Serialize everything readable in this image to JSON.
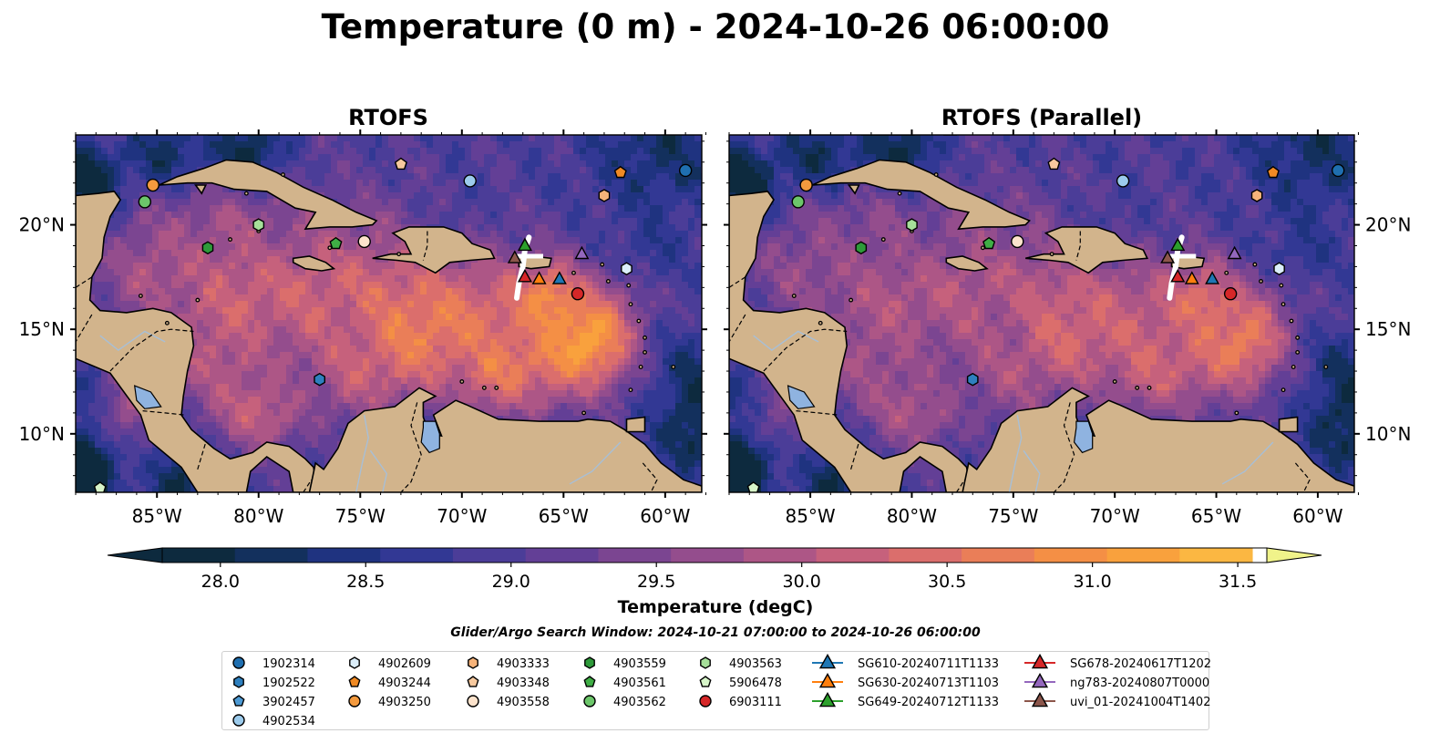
{
  "figure": {
    "title": "Temperature (0 m) - 2024-10-26 06:00:00",
    "search_window": "Glider/Argo Search Window: 2024-10-21 07:00:00 to 2024-10-26 06:00:00"
  },
  "map": {
    "lon_range": [
      -89,
      -58.2
    ],
    "lat_range": [
      7.2,
      24.3
    ],
    "lon_ticks": [
      {
        "value": -85,
        "label": "85°W"
      },
      {
        "value": -80,
        "label": "80°W"
      },
      {
        "value": -75,
        "label": "75°W"
      },
      {
        "value": -70,
        "label": "70°W"
      },
      {
        "value": -65,
        "label": "65°W"
      },
      {
        "value": -60,
        "label": "60°W"
      }
    ],
    "lat_ticks": [
      {
        "value": 10,
        "label": "10°N"
      },
      {
        "value": 15,
        "label": "15°N"
      },
      {
        "value": 20,
        "label": "20°N"
      }
    ],
    "panels": [
      {
        "title": "RTOFS",
        "lat_labels_side": "left"
      },
      {
        "title": "RTOFS (Parallel)",
        "lat_labels_side": "right"
      }
    ],
    "colors": {
      "land": "#d2b48c",
      "lake": "#8fb3e0",
      "river": "#a8bfd6",
      "outline": "#000000"
    }
  },
  "colorbar": {
    "label": "Temperature (degC)",
    "min": 27.8,
    "max": 31.6,
    "step": 0.25,
    "ticks": [
      "28.0",
      "28.5",
      "29.0",
      "29.5",
      "30.0",
      "30.5",
      "31.0",
      "31.5"
    ],
    "tick_values": [
      28.0,
      28.5,
      29.0,
      29.5,
      30.0,
      30.5,
      31.0,
      31.5
    ],
    "colors": [
      "#0d2a3e",
      "#13305d",
      "#1f3380",
      "#323894",
      "#4b3d98",
      "#633f96",
      "#7b4591",
      "#944d8d",
      "#ad5686",
      "#c6617c",
      "#db6e6c",
      "#ea7e58",
      "#f48f45",
      "#f9a13d",
      "#fbb742",
      "#f8cd4c",
      "#f4e258",
      "#f0f38a"
    ],
    "extend": "both"
  },
  "legend": {
    "items": [
      {
        "label": "1902314",
        "marker": "circle",
        "color": "#1f6fb0"
      },
      {
        "label": "1902522",
        "marker": "hexagon",
        "color": "#2e80bf"
      },
      {
        "label": "3902457",
        "marker": "pentagon",
        "color": "#4d9ad4"
      },
      {
        "label": "4902534",
        "marker": "circle",
        "color": "#9ccbec"
      },
      {
        "label": "4902609",
        "marker": "hexagon",
        "color": "#dbeefa"
      },
      {
        "label": "4903244",
        "marker": "pentagon",
        "color": "#f08a24"
      },
      {
        "label": "4903250",
        "marker": "circle",
        "color": "#f49a3e"
      },
      {
        "label": "4903333",
        "marker": "hexagon",
        "color": "#f6b37a"
      },
      {
        "label": "4903348",
        "marker": "pentagon",
        "color": "#f7c99e"
      },
      {
        "label": "4903558",
        "marker": "circle",
        "color": "#fde3cc"
      },
      {
        "label": "4903559",
        "marker": "hexagon",
        "color": "#2e9a3a"
      },
      {
        "label": "4903561",
        "marker": "pentagon",
        "color": "#3fae45"
      },
      {
        "label": "4903562",
        "marker": "circle",
        "color": "#6cc66a"
      },
      {
        "label": "4903563",
        "marker": "hexagon",
        "color": "#a6df9a"
      },
      {
        "label": "5906478",
        "marker": "pentagon",
        "color": "#d7f5c9"
      },
      {
        "label": "6903111",
        "marker": "circle",
        "color": "#d62728"
      },
      {
        "label": "SG610-20240711T1133",
        "marker": "triangle",
        "color": "#1f77b4"
      },
      {
        "label": "SG630-20240713T1103",
        "marker": "triangle",
        "color": "#ff7f0e"
      },
      {
        "label": "SG649-20240712T1133",
        "marker": "triangle",
        "color": "#2ca02c"
      },
      {
        "label": "SG678-20240617T1202",
        "marker": "triangle",
        "color": "#d62728"
      },
      {
        "label": "ng783-20240807T0000",
        "marker": "triangle",
        "color": "#9467bd"
      },
      {
        "label": "uvi_01-20241004T1402",
        "marker": "triangle",
        "color": "#8c564b"
      }
    ]
  },
  "observations": [
    {
      "id": "1902314",
      "lon": -59.0,
      "lat": 22.6
    },
    {
      "id": "1902522",
      "lon": -77.0,
      "lat": 12.6
    },
    {
      "id": "4902534",
      "lon": -69.6,
      "lat": 22.1
    },
    {
      "id": "4902609",
      "lon": -61.9,
      "lat": 17.9
    },
    {
      "id": "4903244",
      "lon": -62.2,
      "lat": 22.5
    },
    {
      "id": "4903250",
      "lon": -85.2,
      "lat": 21.9
    },
    {
      "id": "4903333",
      "lon": -63.0,
      "lat": 21.4
    },
    {
      "id": "4903348",
      "lon": -73.0,
      "lat": 22.9
    },
    {
      "id": "4903558",
      "lon": -74.8,
      "lat": 19.2
    },
    {
      "id": "4903559",
      "lon": -82.5,
      "lat": 18.9
    },
    {
      "id": "4903561",
      "lon": -76.2,
      "lat": 19.1
    },
    {
      "id": "4903562",
      "lon": -85.6,
      "lat": 21.1
    },
    {
      "id": "4903563",
      "lon": -80.0,
      "lat": 20.0
    },
    {
      "id": "5906478",
      "lon": -87.8,
      "lat": 7.4
    },
    {
      "id": "6903111",
      "lon": -64.3,
      "lat": 16.7
    },
    {
      "id": "SG610-20240711T1133",
      "lon": -65.2,
      "lat": 17.4
    },
    {
      "id": "SG630-20240713T1103",
      "lon": -66.2,
      "lat": 17.4
    },
    {
      "id": "SG649-20240712T1133",
      "lon": -66.9,
      "lat": 19.0
    },
    {
      "id": "SG678-20240617T1202",
      "lon": -66.9,
      "lat": 17.5
    },
    {
      "id": "ng783-20240807T0000",
      "lon": -64.1,
      "lat": 18.6
    },
    {
      "id": "uvi_01-20241004T1402",
      "lon": -67.4,
      "lat": 18.4
    }
  ]
}
